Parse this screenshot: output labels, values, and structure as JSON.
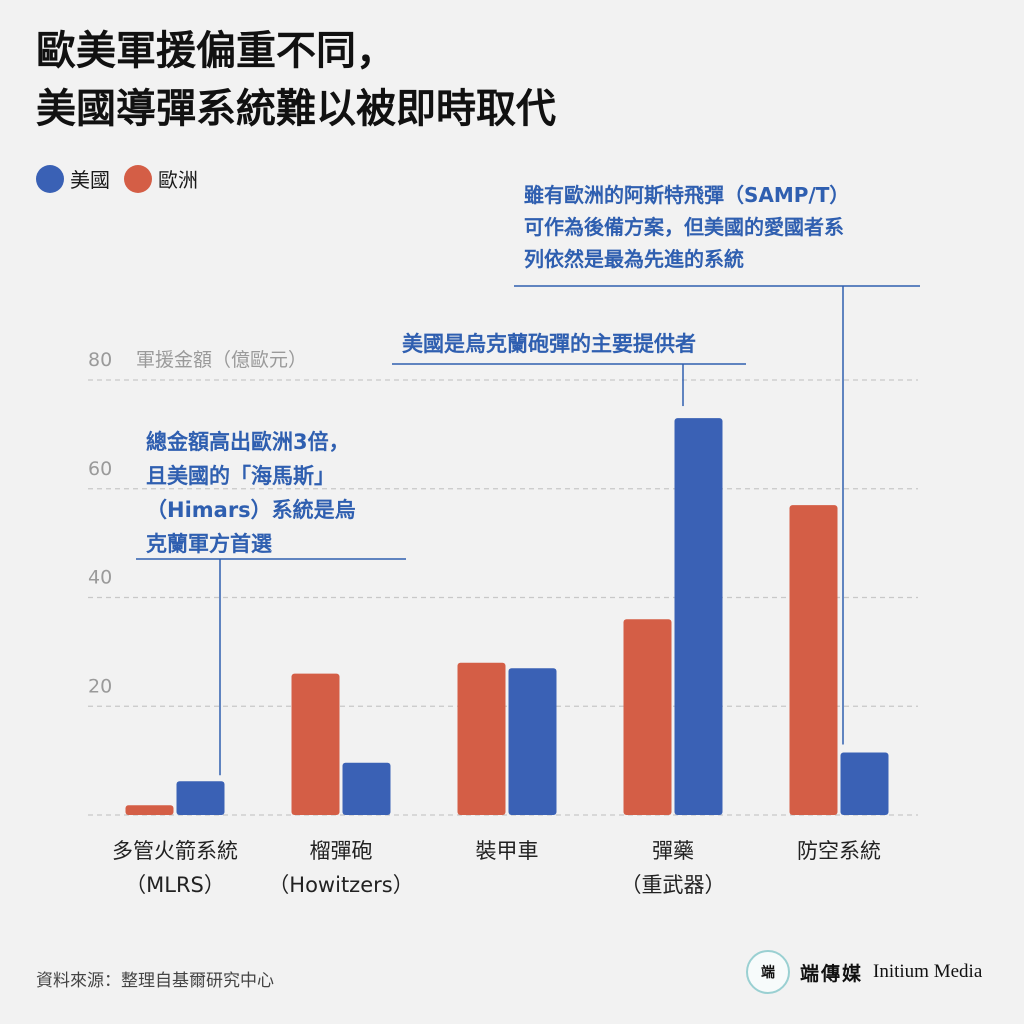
{
  "title": {
    "line1": "歐美軍援偏重不同，",
    "line2": "美國導彈系統難以被即時取代"
  },
  "legend": [
    {
      "label": "美國",
      "color": "#3a61b5"
    },
    {
      "label": "歐洲",
      "color": "#d45e46"
    }
  ],
  "chart_data": {
    "type": "bar",
    "ylabel": "軍援金額（億歐元）",
    "ylim": [
      0,
      80
    ],
    "yticks": [
      20,
      40,
      60,
      80
    ],
    "grid": true,
    "legend_position": "top-left",
    "categories": [
      [
        "多管火箭系統",
        "（MLRS）"
      ],
      [
        "榴彈砲",
        "（Howitzers）"
      ],
      [
        "裝甲車"
      ],
      [
        "彈藥",
        "（重武器）"
      ],
      [
        "防空系統"
      ]
    ],
    "series": [
      {
        "name": "歐洲",
        "color": "#d45e46",
        "values": [
          1.8,
          26,
          28,
          36,
          57
        ]
      },
      {
        "name": "美國",
        "color": "#3a61b5",
        "values": [
          6.2,
          9.6,
          27,
          73,
          11.5
        ]
      }
    ],
    "annotations": [
      {
        "lines": [
          "總金額高出歐洲3倍，",
          "且美國的「海馬斯」",
          "（Himars）系統是烏",
          "克蘭軍方首選"
        ],
        "color": "#2f5fb0"
      },
      {
        "lines": [
          "美國是烏克蘭砲彈的主要提供者"
        ],
        "color": "#2f5fb0"
      },
      {
        "lines": [
          "雖有歐洲的阿斯特飛彈（SAMP/T）",
          "可作為後備方案，但美國的愛國者系",
          "列依然是最為先進的系統"
        ],
        "color": "#2f5fb0"
      }
    ]
  },
  "footer": {
    "source": "資料來源：整理自基爾研究中心",
    "brand_cn": "端傳媒",
    "brand_en": "Initium Media",
    "logo_text": "端"
  }
}
